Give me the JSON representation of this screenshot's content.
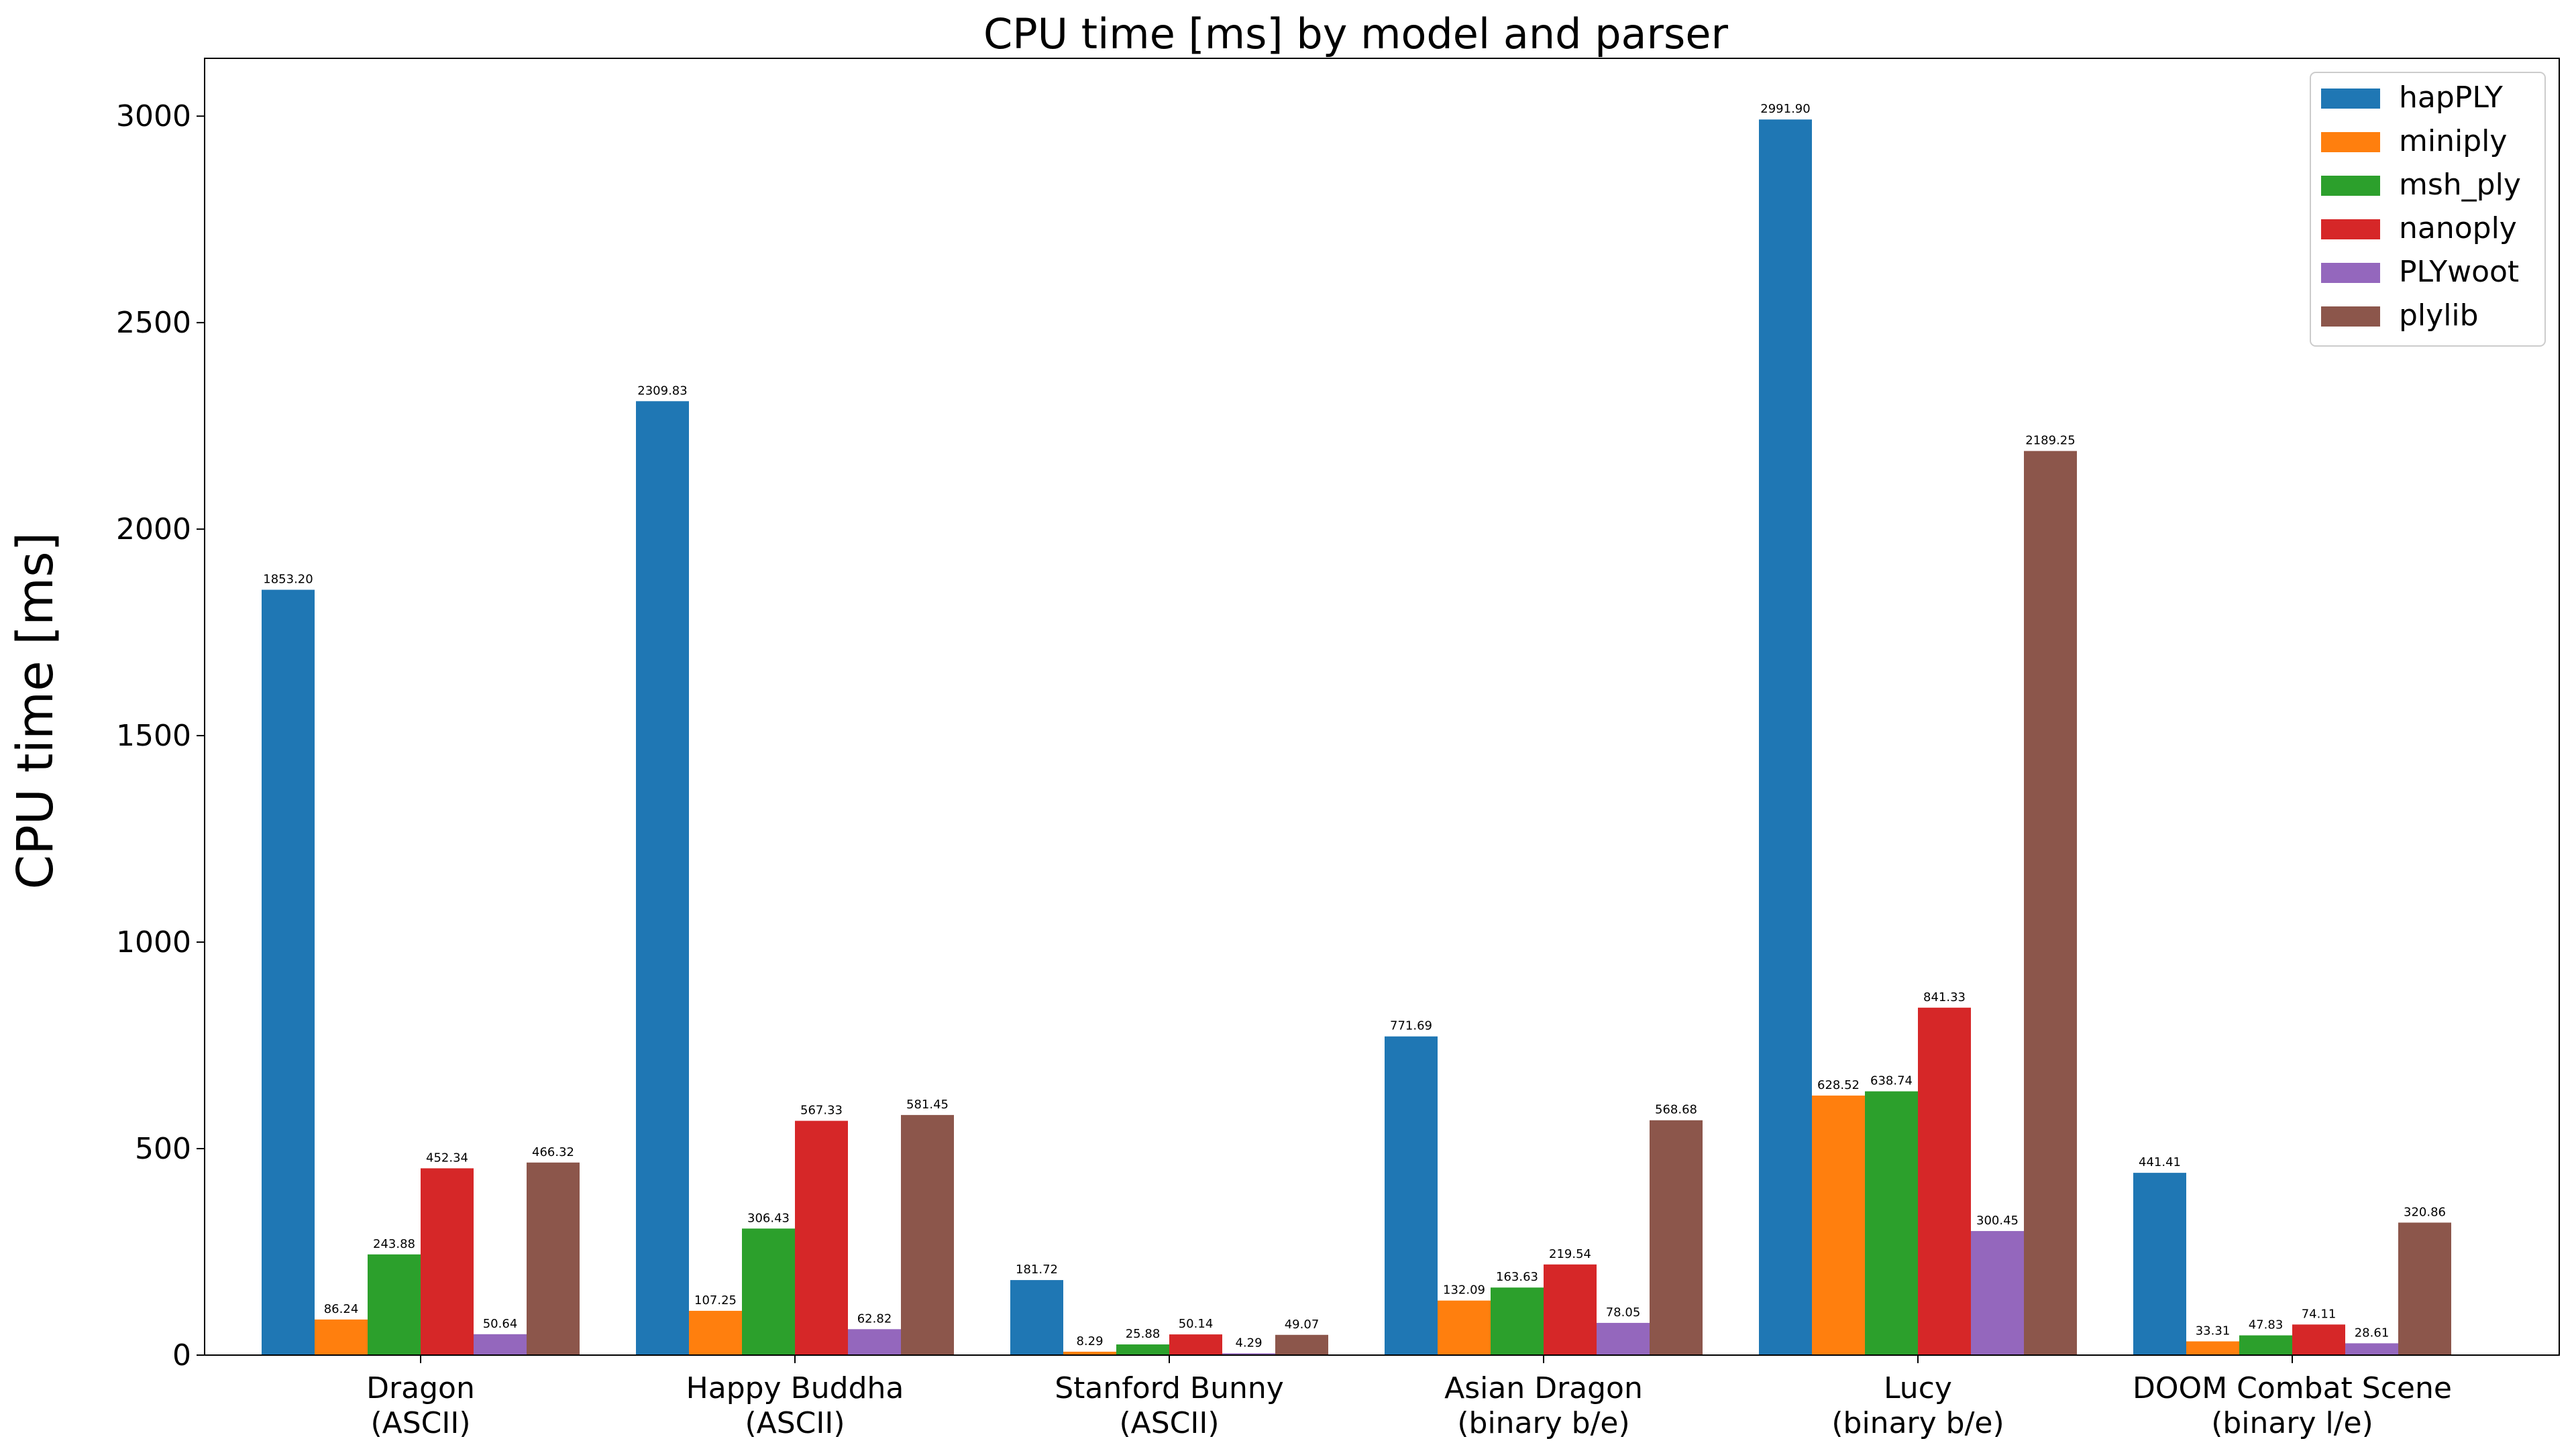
{
  "chart_data": {
    "type": "bar",
    "title": "CPU time [ms] by model and parser",
    "xlabel": "",
    "ylabel": "CPU time [ms]",
    "ylim": [
      0,
      3140
    ],
    "yticks": [
      0,
      500,
      1000,
      1500,
      2000,
      2500,
      3000
    ],
    "categories": [
      [
        "Dragon",
        "(ASCII)"
      ],
      [
        "Happy Buddha",
        "(ASCII)"
      ],
      [
        "Stanford Bunny",
        "(ASCII)"
      ],
      [
        "Asian Dragon",
        "(binary b/e)"
      ],
      [
        "Lucy",
        "(binary b/e)"
      ],
      [
        "DOOM Combat Scene",
        "(binary l/e)"
      ]
    ],
    "series": [
      {
        "name": "hapPLY",
        "color": "#1f77b4",
        "values": [
          1853.2,
          2309.83,
          181.72,
          771.69,
          2991.9,
          441.41
        ],
        "labels": [
          "1853.20",
          "2309.83",
          "181.72",
          "771.69",
          "2991.90",
          "441.41"
        ]
      },
      {
        "name": "miniply",
        "color": "#ff7f0e",
        "values": [
          86.24,
          107.25,
          8.29,
          132.09,
          628.52,
          33.31
        ],
        "labels": [
          "86.24",
          "107.25",
          "8.29",
          "132.09",
          "628.52",
          "33.31"
        ]
      },
      {
        "name": "msh_ply",
        "color": "#2ca02c",
        "values": [
          243.88,
          306.43,
          25.88,
          163.63,
          638.74,
          47.83
        ],
        "labels": [
          "243.88",
          "306.43",
          "25.88",
          "163.63",
          "638.74",
          "47.83"
        ]
      },
      {
        "name": "nanoply",
        "color": "#d62728",
        "values": [
          452.34,
          567.33,
          50.14,
          219.54,
          841.33,
          74.11
        ],
        "labels": [
          "452.34",
          "567.33",
          "50.14",
          "219.54",
          "841.33",
          "74.11"
        ]
      },
      {
        "name": "PLYwoot",
        "color": "#9467bd",
        "values": [
          50.64,
          62.82,
          4.29,
          78.05,
          300.45,
          28.61
        ],
        "labels": [
          "50.64",
          "62.82",
          "4.29",
          "78.05",
          "300.45",
          "28.61"
        ]
      },
      {
        "name": "plylib",
        "color": "#8c564b",
        "values": [
          466.32,
          581.45,
          49.07,
          568.68,
          2189.25,
          320.86
        ],
        "labels": [
          "466.32",
          "581.45",
          "49.07",
          "568.68",
          "2189.25",
          "320.86"
        ]
      }
    ],
    "grid": false,
    "legend_position": "top-right"
  }
}
